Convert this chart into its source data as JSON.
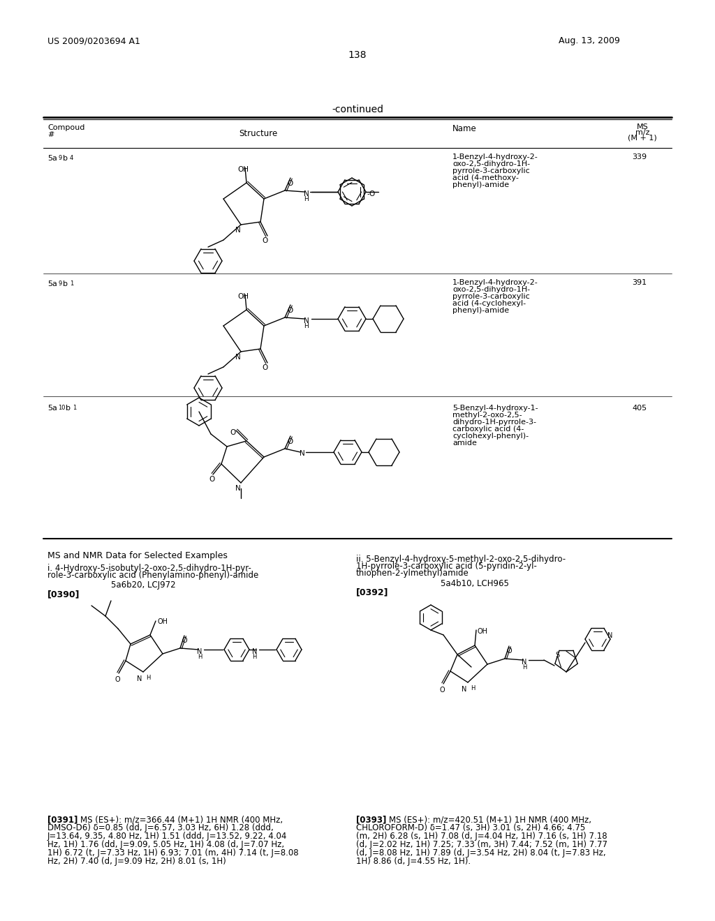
{
  "page_number": "138",
  "patent_number": "US 2009/0203694 A1",
  "patent_date": "Aug. 13, 2009",
  "background_color": "#ffffff"
}
